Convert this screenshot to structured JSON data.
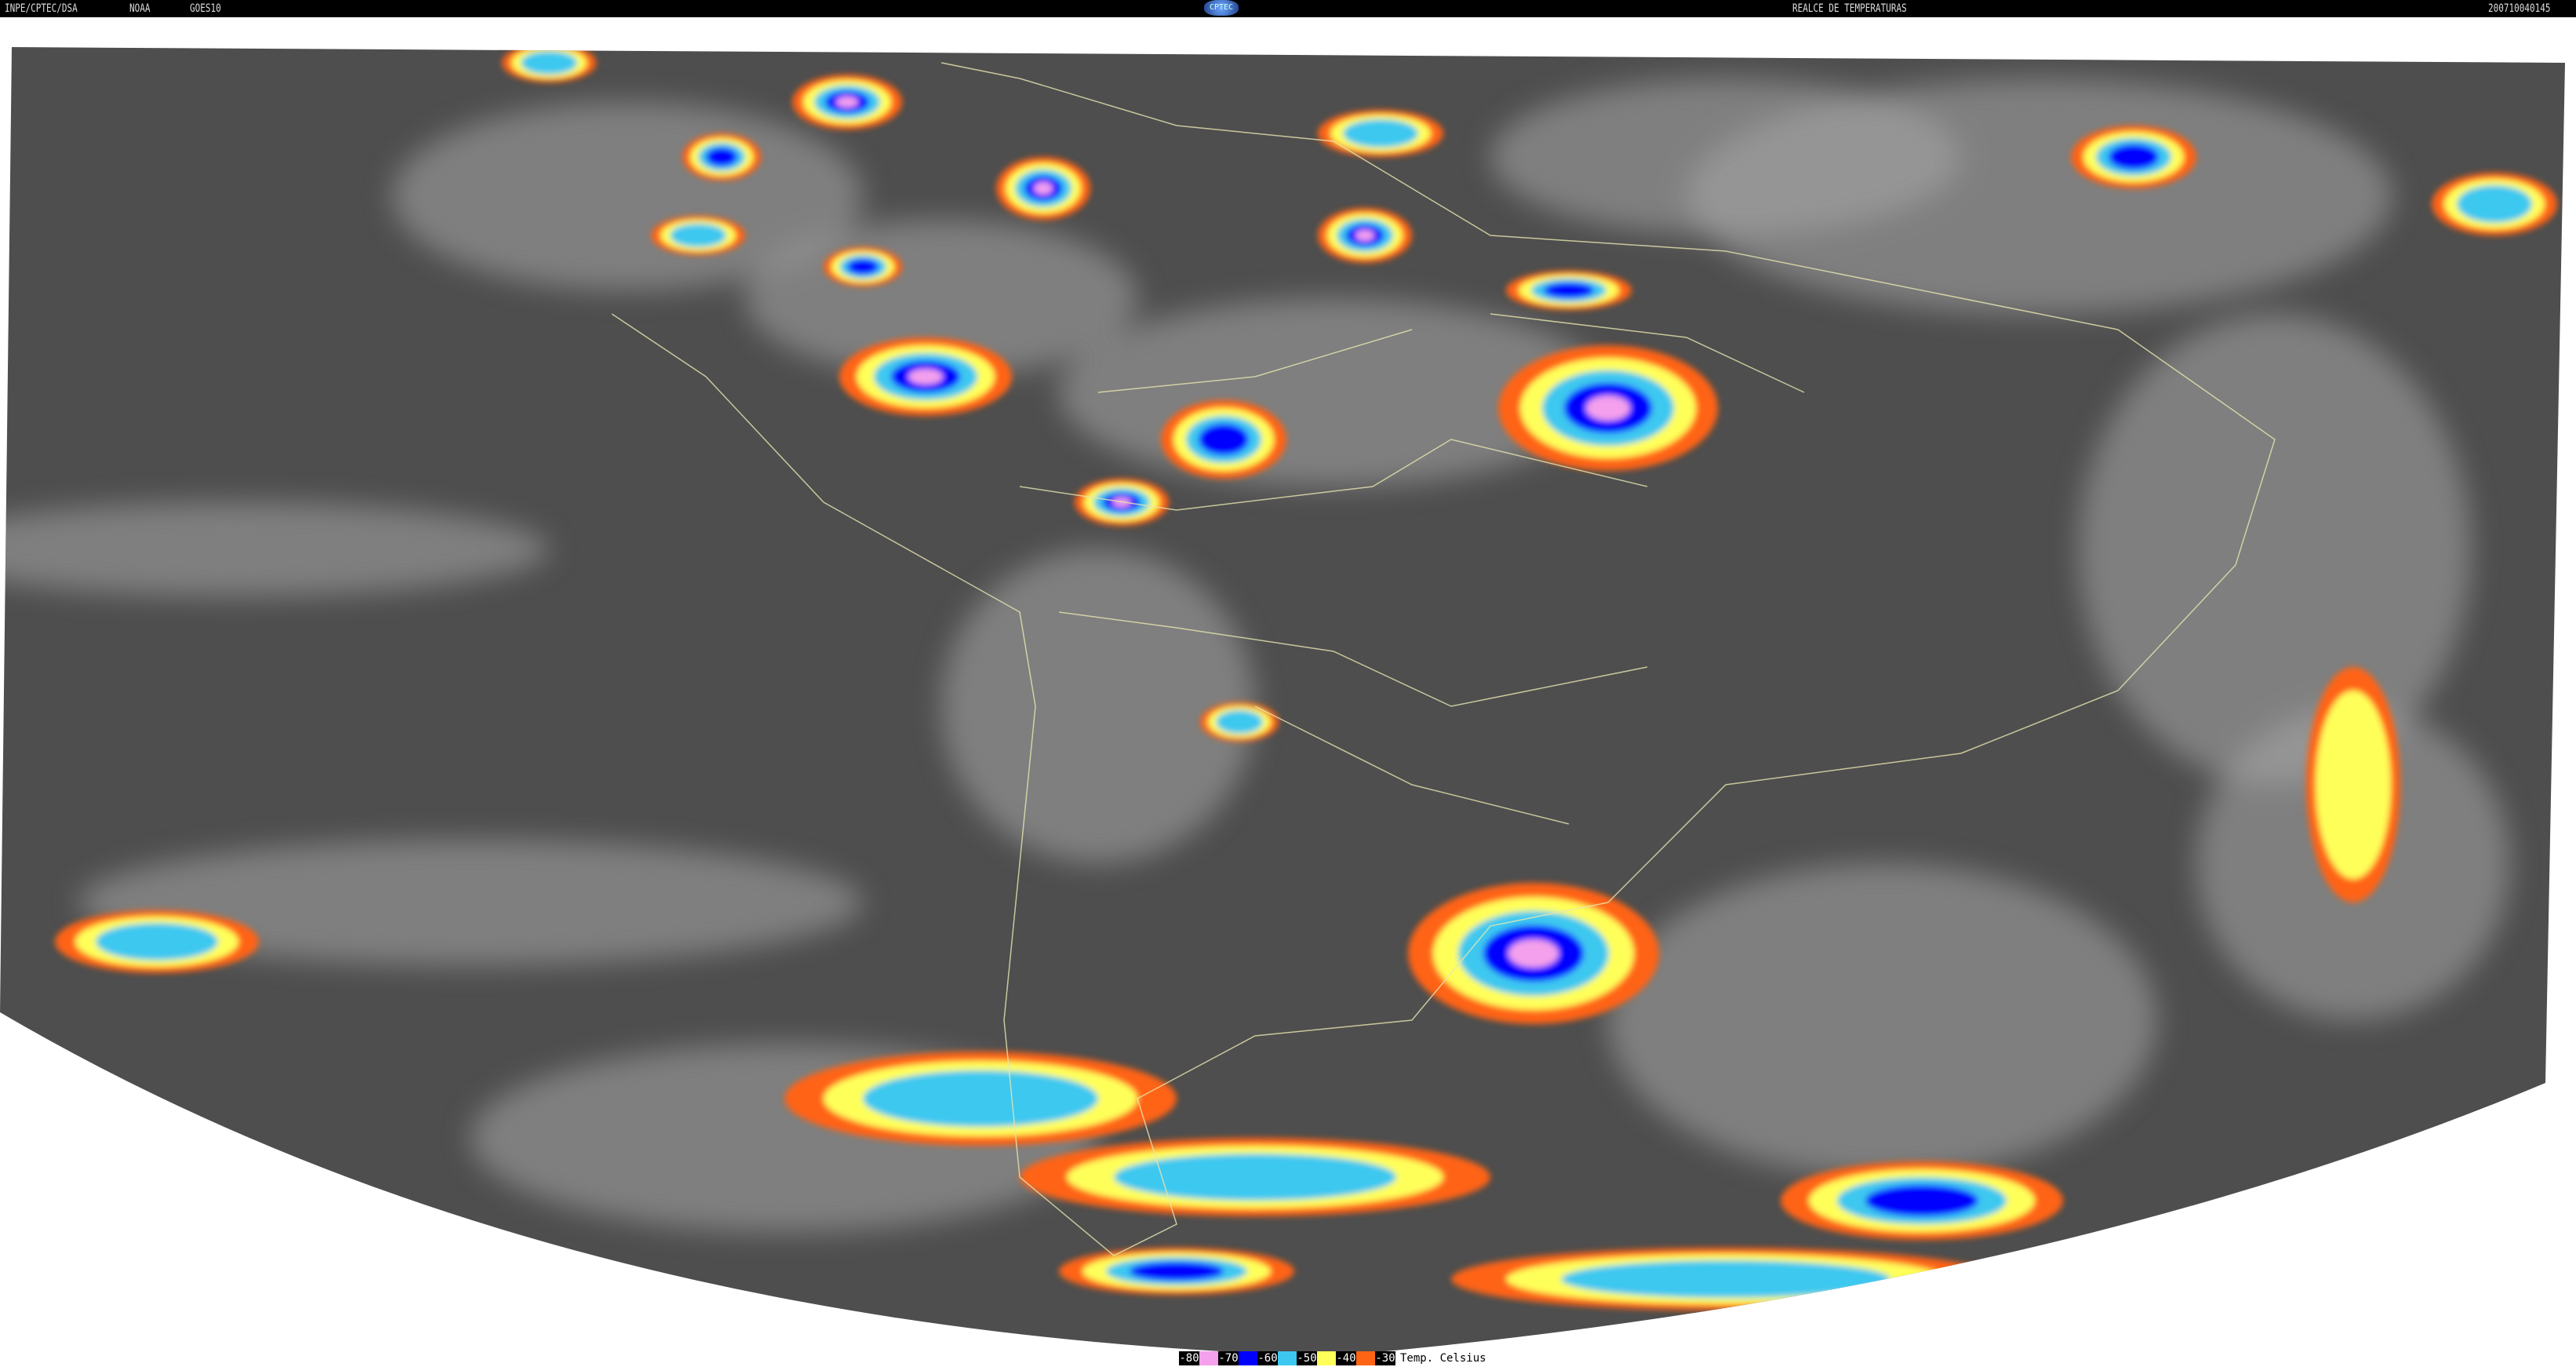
{
  "header": {
    "agency": "INPE/CPTEC/DSA",
    "source": "NOAA",
    "satellite": "GOES10",
    "logo": "CPTEC",
    "product": "REALCE DE TEMPERATURAS",
    "timestamp": "200710040145"
  },
  "legend": {
    "unit_label": "Temp. Celsius",
    "items": [
      {
        "label": "-80",
        "color": "#f4a0ec"
      },
      {
        "label": "-70",
        "color": "#0000ff"
      },
      {
        "label": "-60",
        "color": "#3cc8f0"
      },
      {
        "label": "-50",
        "color": "#ffff5a"
      },
      {
        "label": "-40",
        "color": "#ff6414"
      },
      {
        "label": "-30",
        "color": null
      }
    ]
  },
  "colors": {
    "background_disk": "#4e4e4e",
    "clouds": "#a8a8a8",
    "borders": "#e8e6b0"
  }
}
